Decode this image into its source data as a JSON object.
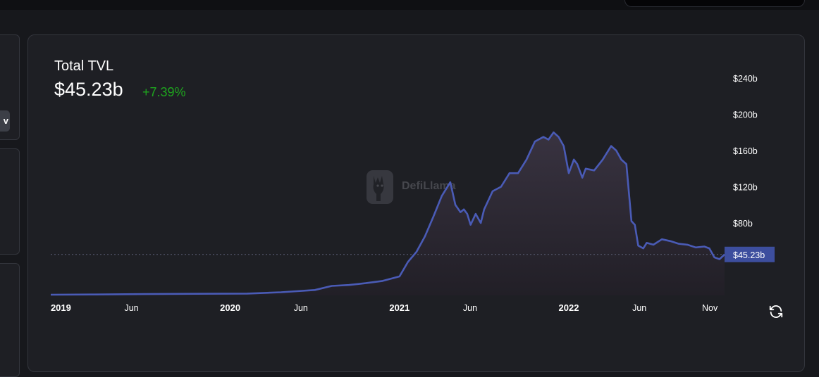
{
  "header": {
    "title": "Total TVL",
    "value": "$45.23b",
    "change": "+7.39%"
  },
  "side": {
    "chip_label": "v"
  },
  "watermark": {
    "text": "DefiLlama"
  },
  "colors": {
    "line": "#4a5bb6",
    "change_positive": "#1ea51e",
    "price_tag": "#3d4e9e"
  },
  "icons": {
    "refresh": "refresh-icon",
    "logo": "llama-logo-icon"
  },
  "chart_data": {
    "type": "area",
    "title": "Total TVL",
    "xlabel": "",
    "ylabel": "",
    "x_unit": "year",
    "ylim": [
      0,
      240
    ],
    "y_unit": "$b",
    "y_ticks": [
      {
        "value": 80,
        "label": "$80b"
      },
      {
        "value": 120,
        "label": "$120b"
      },
      {
        "value": 160,
        "label": "$160b"
      },
      {
        "value": 200,
        "label": "$200b"
      },
      {
        "value": 240,
        "label": "$240b"
      }
    ],
    "x_ticks": [
      {
        "value": 2019.0,
        "label": "2019",
        "bold": true
      },
      {
        "value": 2019.417,
        "label": "Jun",
        "bold": false
      },
      {
        "value": 2020.0,
        "label": "2020",
        "bold": true
      },
      {
        "value": 2020.417,
        "label": "Jun",
        "bold": false
      },
      {
        "value": 2021.0,
        "label": "2021",
        "bold": true
      },
      {
        "value": 2021.417,
        "label": "Jun",
        "bold": false
      },
      {
        "value": 2022.0,
        "label": "2022",
        "bold": true
      },
      {
        "value": 2022.417,
        "label": "Jun",
        "bold": false
      },
      {
        "value": 2022.833,
        "label": "Nov",
        "bold": false
      }
    ],
    "current_value": {
      "value": 45.23,
      "label": "$45.23b"
    },
    "grid": false,
    "series": [
      {
        "x": [
          2018.94,
          2019.2,
          2019.5,
          2019.8,
          2020.1,
          2020.3,
          2020.5,
          2020.6,
          2020.7,
          2020.8,
          2020.9,
          2021.0,
          2021.05,
          2021.1,
          2021.15,
          2021.2,
          2021.25,
          2021.3,
          2021.33,
          2021.36,
          2021.38,
          2021.4,
          2021.42,
          2021.45,
          2021.48,
          2021.5,
          2021.55,
          2021.6,
          2021.65,
          2021.7,
          2021.75,
          2021.8,
          2021.85,
          2021.88,
          2021.91,
          2021.94,
          2021.97,
          2022.0,
          2022.03,
          2022.05,
          2022.08,
          2022.1,
          2022.15,
          2022.2,
          2022.25,
          2022.28,
          2022.31,
          2022.34,
          2022.37,
          2022.39,
          2022.41,
          2022.44,
          2022.46,
          2022.5,
          2022.55,
          2022.6,
          2022.65,
          2022.7,
          2022.75,
          2022.8,
          2022.83,
          2022.86,
          2022.89,
          2022.92
        ],
        "y": [
          0.8,
          1.0,
          1.5,
          1.8,
          2.0,
          3.5,
          6.0,
          10.5,
          11.5,
          13.5,
          16.0,
          21.0,
          37.0,
          48.0,
          65.0,
          87.0,
          110.0,
          125.0,
          100.0,
          92.0,
          95.0,
          90.0,
          78.0,
          90.0,
          80.0,
          95.0,
          115.0,
          120.0,
          135.0,
          135.0,
          150.0,
          170.0,
          175.0,
          172.0,
          180.0,
          175.0,
          165.0,
          135.0,
          150.0,
          145.0,
          130.0,
          140.0,
          138.0,
          150.0,
          165.0,
          160.0,
          150.0,
          145.0,
          82.0,
          78.0,
          55.0,
          52.0,
          58.0,
          56.0,
          62.0,
          60.0,
          57.0,
          56.0,
          53.0,
          54.0,
          52.0,
          42.0,
          40.0,
          45.23
        ]
      }
    ]
  }
}
